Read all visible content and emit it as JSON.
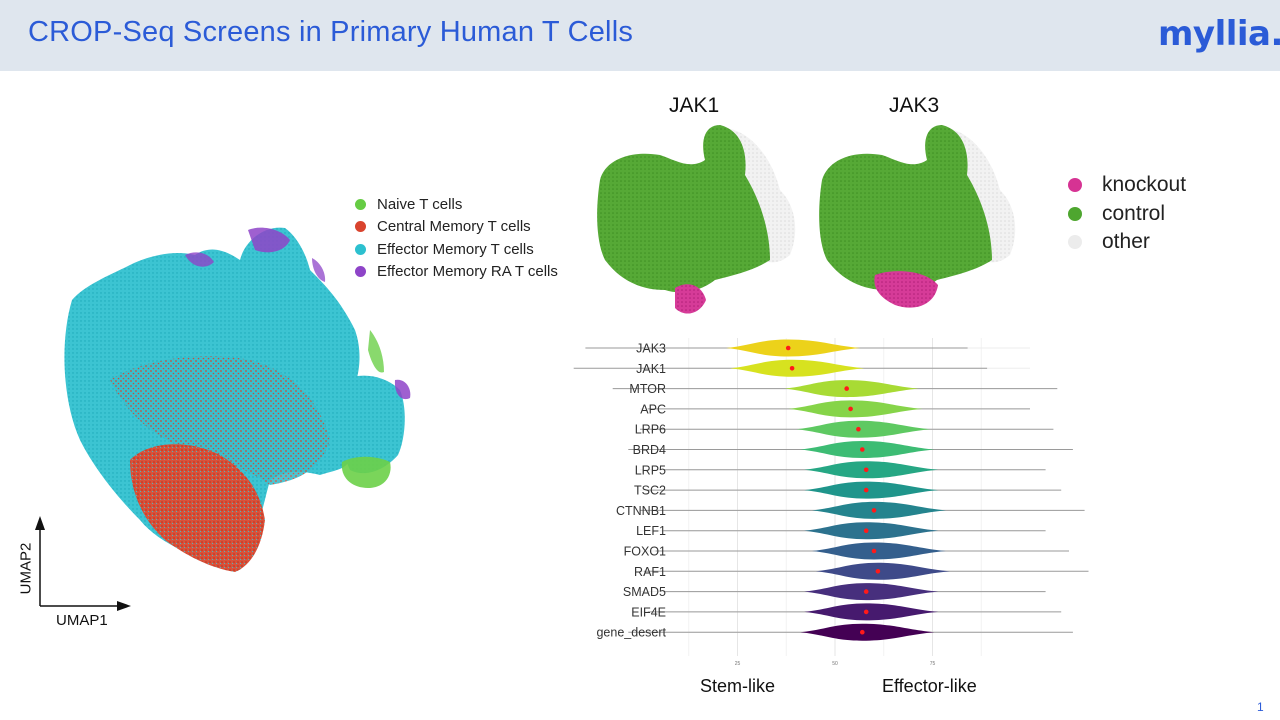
{
  "header": {
    "title": "CROP-Seq Screens in Primary Human T Cells",
    "logo": "myllia."
  },
  "umap": {
    "x_label": "UMAP1",
    "y_label": "UMAP2",
    "legend": [
      {
        "label": "Naive T cells",
        "color": "#66cc44"
      },
      {
        "label": "Central Memory T cells",
        "color": "#d9442e"
      },
      {
        "label": "Effector Memory T cells",
        "color": "#2cc0cf"
      },
      {
        "label": "Effector Memory RA T cells",
        "color": "#8e44c8"
      }
    ]
  },
  "ko_panels": {
    "titles": [
      "JAK1",
      "JAK3"
    ],
    "legend": [
      {
        "label": "knockout",
        "color": "#d63393"
      },
      {
        "label": "control",
        "color": "#4ea62f"
      },
      {
        "label": "other",
        "color": "#ececec"
      }
    ]
  },
  "chart_data": {
    "type": "violin",
    "categories": [
      "JAK3",
      "JAK1",
      "MTOR",
      "APC",
      "LRP6",
      "BRD4",
      "LRP5",
      "TSC2",
      "CTNNB1",
      "LEF1",
      "FOXO1",
      "RAF1",
      "SMAD5",
      "EIF4E",
      "gene_desert"
    ],
    "medians": [
      38,
      39,
      53,
      54,
      56,
      57,
      58,
      58,
      60,
      58,
      60,
      61,
      58,
      58,
      57
    ],
    "x_ticks": [
      25,
      50,
      75
    ],
    "x_range": [
      0,
      100
    ],
    "left_label": "Stem-like",
    "right_label": "Effector-like",
    "colors": [
      "#ecd21a",
      "#d7e21f",
      "#a8db34",
      "#86d449",
      "#5ec962",
      "#3dbc74",
      "#26a784",
      "#1f958b",
      "#24848e",
      "#2c728e",
      "#345f8d",
      "#3e4a89",
      "#472f7d",
      "#461a6e",
      "#440154"
    ]
  },
  "page_number": "1"
}
